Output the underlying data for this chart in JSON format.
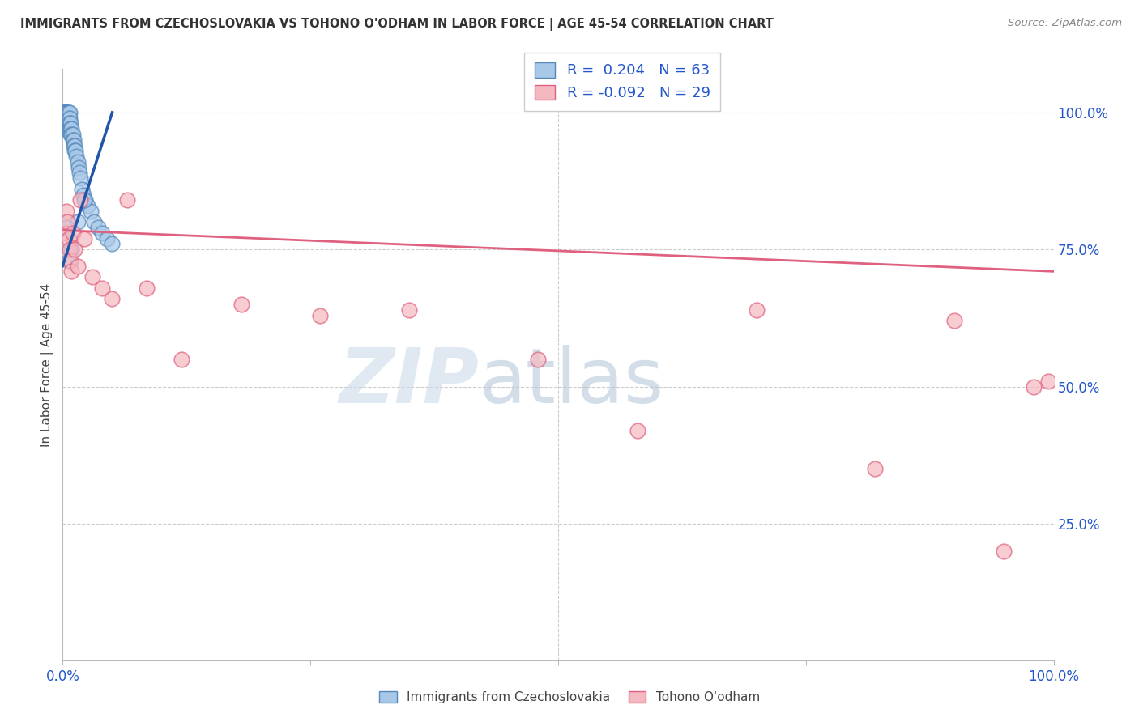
{
  "title": "IMMIGRANTS FROM CZECHOSLOVAKIA VS TOHONO O'ODHAM IN LABOR FORCE | AGE 45-54 CORRELATION CHART",
  "source": "Source: ZipAtlas.com",
  "ylabel": "In Labor Force | Age 45-54",
  "ytick_values": [
    0.0,
    0.25,
    0.5,
    0.75,
    1.0
  ],
  "xlim": [
    0.0,
    1.0
  ],
  "ylim": [
    0.0,
    1.08
  ],
  "R_blue": 0.204,
  "N_blue": 63,
  "R_pink": -0.092,
  "N_pink": 29,
  "blue_color": "#a8c8e8",
  "blue_edge_color": "#5588bb",
  "pink_color": "#f4b8c0",
  "pink_edge_color": "#e06080",
  "trendline_blue_color": "#2255aa",
  "trendline_pink_color": "#e06080",
  "blue_x": [
    0.001,
    0.001,
    0.001,
    0.002,
    0.002,
    0.002,
    0.002,
    0.002,
    0.003,
    0.003,
    0.003,
    0.003,
    0.003,
    0.003,
    0.004,
    0.004,
    0.004,
    0.004,
    0.004,
    0.005,
    0.005,
    0.005,
    0.005,
    0.006,
    0.006,
    0.006,
    0.006,
    0.007,
    0.007,
    0.007,
    0.007,
    0.008,
    0.008,
    0.008,
    0.009,
    0.009,
    0.01,
    0.01,
    0.011,
    0.011,
    0.012,
    0.012,
    0.013,
    0.014,
    0.015,
    0.016,
    0.017,
    0.018,
    0.019,
    0.021,
    0.023,
    0.025,
    0.028,
    0.032,
    0.036,
    0.04,
    0.045,
    0.05,
    0.022,
    0.015,
    0.009,
    0.006,
    0.004
  ],
  "blue_y": [
    1.0,
    1.0,
    0.99,
    1.0,
    1.0,
    1.0,
    0.99,
    0.98,
    1.0,
    1.0,
    1.0,
    0.99,
    0.98,
    0.97,
    1.0,
    1.0,
    0.99,
    0.98,
    0.97,
    1.0,
    1.0,
    0.99,
    0.98,
    1.0,
    0.99,
    0.98,
    0.97,
    1.0,
    0.99,
    0.98,
    0.97,
    0.98,
    0.97,
    0.96,
    0.97,
    0.96,
    0.96,
    0.95,
    0.95,
    0.94,
    0.94,
    0.93,
    0.93,
    0.92,
    0.91,
    0.9,
    0.89,
    0.88,
    0.86,
    0.85,
    0.84,
    0.83,
    0.82,
    0.8,
    0.79,
    0.78,
    0.77,
    0.76,
    0.84,
    0.8,
    0.75,
    0.73,
    0.79
  ],
  "pink_x": [
    0.003,
    0.004,
    0.005,
    0.006,
    0.007,
    0.008,
    0.009,
    0.01,
    0.012,
    0.015,
    0.018,
    0.022,
    0.03,
    0.04,
    0.05,
    0.065,
    0.085,
    0.12,
    0.18,
    0.26,
    0.35,
    0.48,
    0.58,
    0.7,
    0.82,
    0.9,
    0.95,
    0.98,
    0.995
  ],
  "pink_y": [
    0.78,
    0.82,
    0.8,
    0.77,
    0.75,
    0.73,
    0.71,
    0.78,
    0.75,
    0.72,
    0.84,
    0.77,
    0.7,
    0.68,
    0.66,
    0.84,
    0.68,
    0.55,
    0.65,
    0.63,
    0.64,
    0.55,
    0.42,
    0.64,
    0.35,
    0.62,
    0.2,
    0.5,
    0.51
  ],
  "pink_trend_x0": 0.0,
  "pink_trend_x1": 1.0,
  "pink_trend_y0": 0.785,
  "pink_trend_y1": 0.71,
  "blue_trend_x0": 0.0,
  "blue_trend_x1": 0.05,
  "blue_trend_y0": 0.72,
  "blue_trend_y1": 1.0
}
